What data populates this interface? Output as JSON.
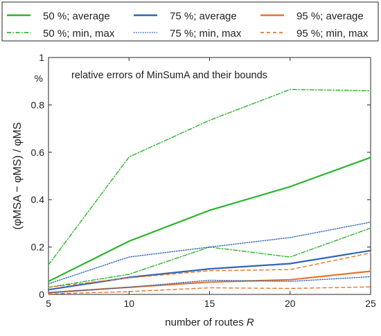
{
  "chart_data": {
    "type": "line",
    "annotation": "relative errors of MinSumA and their bounds",
    "xlabel": "number of routes R",
    "ylabel": "(φMSA − φMS) / φMS",
    "yunit": "%",
    "x": [
      5,
      10,
      15,
      20,
      25
    ],
    "xlim": [
      5,
      25
    ],
    "ylim": [
      0,
      1
    ],
    "xticks": [
      "5",
      "10",
      "15",
      "20",
      "25"
    ],
    "yticks": [
      "0",
      "0.2",
      "0.4",
      "0.6",
      "0.8",
      "1"
    ],
    "grid": false,
    "legend_placement": "top",
    "series": [
      {
        "name": "50 %; average",
        "color": "#2ab52a",
        "style": "solid",
        "values": [
          0.055,
          0.225,
          0.355,
          0.455,
          0.578
        ]
      },
      {
        "name": "75 %; average",
        "color": "#2f64b8",
        "style": "solid",
        "values": [
          0.02,
          0.072,
          0.108,
          0.13,
          0.185
        ]
      },
      {
        "name": "95 %; average",
        "color": "#e8732a",
        "style": "solid",
        "values": [
          0.008,
          0.03,
          0.052,
          0.062,
          0.098
        ]
      },
      {
        "name": "50 %; min, max",
        "color": "#2ab52a",
        "style": "dashdot",
        "values": [
          0.125,
          0.58,
          0.735,
          0.865,
          0.86
        ]
      },
      {
        "name": "50 %; min, max",
        "color": "#2ab52a",
        "style": "dashdot",
        "values": [
          0.03,
          0.085,
          0.2,
          0.158,
          0.28
        ]
      },
      {
        "name": "75 %; min, max",
        "color": "#2f64b8",
        "style": "dotted",
        "values": [
          0.045,
          0.158,
          0.2,
          0.24,
          0.305
        ]
      },
      {
        "name": "75 %; min, max",
        "color": "#2f64b8",
        "style": "dotted",
        "values": [
          0.006,
          0.03,
          0.06,
          0.055,
          0.075
        ]
      },
      {
        "name": "95 %; min, max",
        "color": "#e8732a",
        "style": "dashed",
        "values": [
          0.03,
          0.07,
          0.1,
          0.105,
          0.175
        ]
      },
      {
        "name": "95 %; min, max",
        "color": "#e8732a",
        "style": "dashed",
        "values": [
          0.002,
          0.012,
          0.028,
          0.025,
          0.032
        ]
      }
    ],
    "legend": [
      {
        "label": "50 %; average",
        "color": "#2ab52a",
        "style": "solid"
      },
      {
        "label": "75 %; average",
        "color": "#2f64b8",
        "style": "solid"
      },
      {
        "label": "95 %; average",
        "color": "#e8732a",
        "style": "solid"
      },
      {
        "label": "50 %; min, max",
        "color": "#2ab52a",
        "style": "dashdot"
      },
      {
        "label": "75 %; min, max",
        "color": "#2f64b8",
        "style": "dotted"
      },
      {
        "label": "95 %; min, max",
        "color": "#e8732a",
        "style": "dashed"
      }
    ]
  }
}
